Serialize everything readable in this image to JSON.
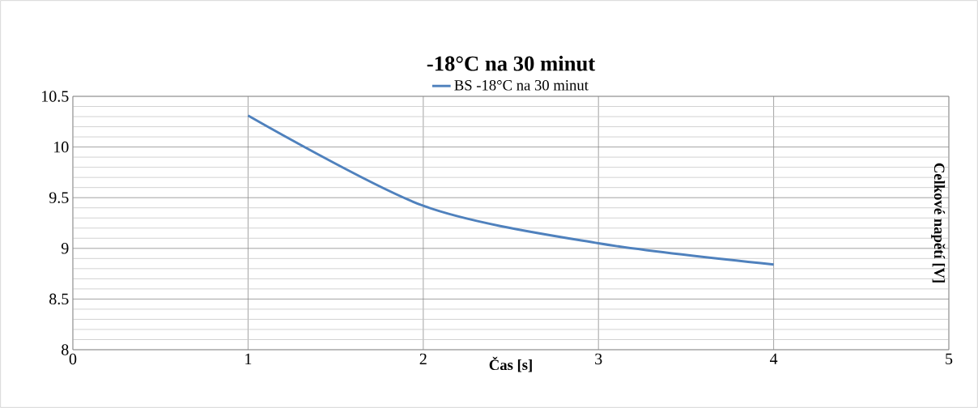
{
  "chart_data": {
    "type": "line",
    "title": "-18°C na 30 minut",
    "xlabel": "Čas [s]",
    "ylabel": "Celkové napětí [V]",
    "x": [
      1,
      2,
      3,
      4
    ],
    "series": [
      {
        "name": "BS -18°C na 30 minut",
        "color": "#4f81bd",
        "values": [
          10.31,
          9.42,
          9.05,
          8.84
        ]
      }
    ],
    "xlim": [
      0,
      5
    ],
    "ylim": [
      8,
      10.5
    ],
    "xticks": [
      0,
      1,
      2,
      3,
      4,
      5
    ],
    "yticks": [
      8,
      8.5,
      9,
      9.5,
      10,
      10.5
    ],
    "grid": true,
    "legend": "top",
    "marker": "none",
    "line_style": "solid"
  }
}
